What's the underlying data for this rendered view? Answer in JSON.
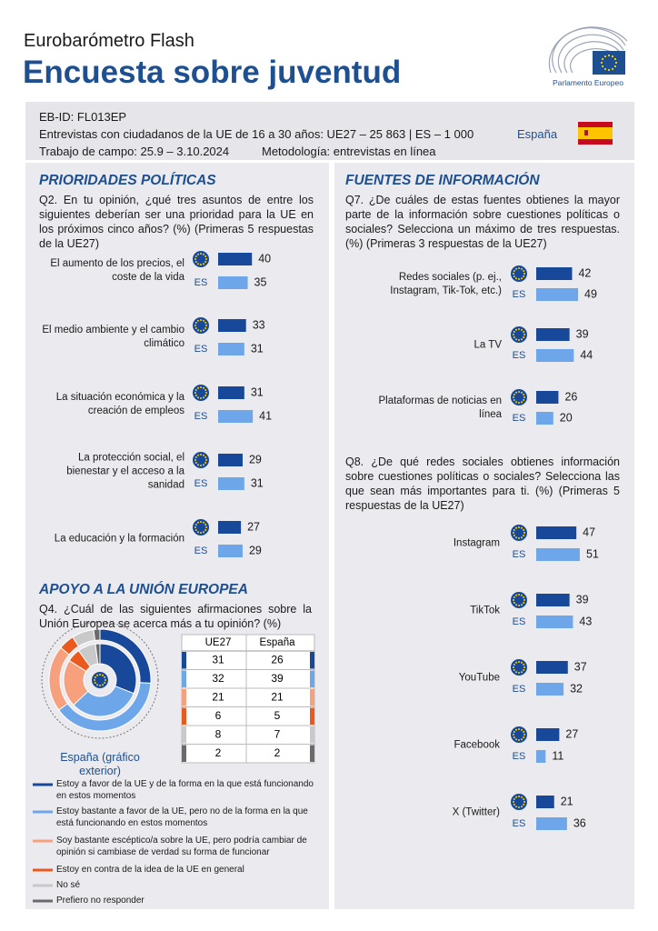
{
  "header": {
    "subtitle": "Eurobarómetro Flash",
    "title": "Encuesta sobre juventud",
    "logo_text": "Parlamento Europeo"
  },
  "info": {
    "id": "EB-ID: FL013EP",
    "sample": "Entrevistas con ciudadanos de la UE de 16 a 30 años: UE27 – 25 863 | ES – 1 000",
    "country": "España",
    "fieldwork": "Trabajo de campo: 25.9 – 3.10.2024",
    "method": "Metodología: entrevistas en línea"
  },
  "chart_data": [
    {
      "type": "bar",
      "orientation": "horizontal",
      "title": "PRIORIDADES POLÍTICAS",
      "subtitle": "Q2. En tu opinión, ¿qué tres asuntos de entre los siguientes deberían ser una prioridad para la UE en los próximos cinco años? (%) (Primeras 5 respuestas de la UE27)",
      "categories": [
        "El aumento de los precios, el coste de la vida",
        "El medio ambiente y el cambio climático",
        "La situación económica y la creación de empleos",
        "La protección social, el bienestar y el acceso a la sanidad",
        "La educación y la formación"
      ],
      "series": [
        {
          "color": "#17489a",
          "values": [
            40,
            33,
            31,
            29,
            27
          ]
        },
        {
          "name": "ES",
          "color": "#6ea6ea",
          "values": [
            35,
            31,
            41,
            31,
            29
          ]
        }
      ],
      "xlim": [
        0,
        100
      ]
    },
    {
      "type": "bar",
      "orientation": "horizontal",
      "title": "FUENTES DE INFORMACIÓN",
      "subtitle": "Q7. ¿De cuáles de estas fuentes obtienes la mayor parte de la información sobre cuestiones políticas o sociales? Selecciona un máximo de tres respuestas. (%) (Primeras 3 respuestas de la UE27)",
      "categories": [
        "Redes sociales (p. ej., Instagram, Tik-Tok, etc.)",
        "La TV",
        "Plataformas de noticias en línea"
      ],
      "series": [
        {
          "color": "#17489a",
          "values": [
            42,
            39,
            26
          ]
        },
        {
          "name": "ES",
          "color": "#6ea6ea",
          "values": [
            49,
            44,
            20
          ]
        }
      ],
      "xlim": [
        0,
        100
      ]
    },
    {
      "type": "bar",
      "orientation": "horizontal",
      "subtitle": "Q8. ¿De qué redes sociales obtienes información sobre cuestiones políticas o sociales? Selecciona las que sean más importantes para ti. (%) (Primeras 5 respuestas de la UE27)",
      "categories": [
        "Instagram",
        "TikTok",
        "YouTube",
        "Facebook",
        "X (Twitter)"
      ],
      "series": [
        {
          "color": "#17489a",
          "values": [
            47,
            39,
            37,
            27,
            21
          ]
        },
        {
          "name": "ES",
          "color": "#6ea6ea",
          "values": [
            51,
            43,
            32,
            11,
            36
          ]
        }
      ],
      "xlim": [
        0,
        100
      ]
    },
    {
      "type": "donut",
      "title": "APOYO A LA UNIÓN EUROPEA",
      "subtitle": "Q4. ¿Cuál de las siguientes afirmaciones sobre la Unión Europea se acerca más a tu opinión? (%)",
      "outer_label": "España (gráfico exterior)",
      "categories": [
        "Estoy a favor de la UE y de la forma en la que está funcionando en estos momentos",
        "Estoy bastante a favor de la UE, pero no de la forma en la que está funcionando en estos momentos",
        "Soy bastante escéptico/a sobre la UE, pero podría cambiar de opinión si cambiase de verdad su forma de funcionar",
        "Estoy en contra de la idea de la UE en general",
        "No sé",
        "Prefiero no responder"
      ],
      "colors": [
        "#17489a",
        "#6ea6ea",
        "#f6a07e",
        "#ea5a1e",
        "#c9c9c9",
        "#6a6a6a"
      ],
      "series": [
        {
          "name": "UE27",
          "values": [
            31,
            32,
            21,
            6,
            8,
            2
          ]
        },
        {
          "name": "España",
          "values": [
            26,
            39,
            21,
            5,
            7,
            2
          ]
        }
      ]
    }
  ]
}
